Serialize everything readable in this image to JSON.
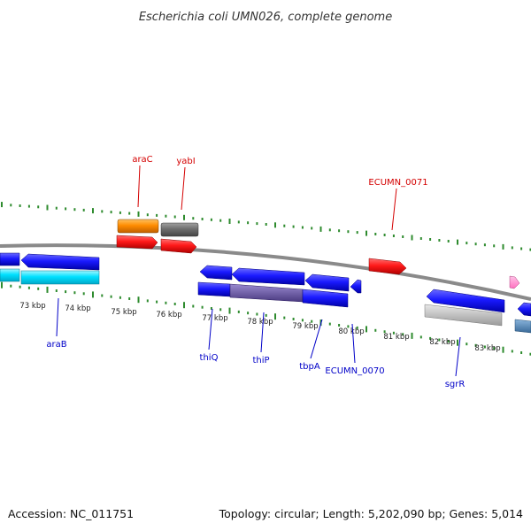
{
  "title": "Escherichia coli UMN026, complete genome",
  "footer": {
    "accession": "Accession: NC_011751",
    "summary": "Topology: circular; Length: 5,202,090 bp; Genes: 5,014"
  },
  "colors": {
    "backbone": "#8a8a8a",
    "tick": "#2e8b2e",
    "label_red": "#d40000",
    "label_blue": "#0000c8",
    "gene_blue": "#1a1aff",
    "gene_red": "#ff1a1a",
    "gene_orange": "#ff8c00",
    "gene_gray": "#6e6e6e",
    "gene_cyan": "#00e0ff",
    "gene_lightgray": "#c4c4c4",
    "gene_pink": "#ff8ccf",
    "gene_purple": "#6a5aa0",
    "gene_steel": "#4f86b8"
  },
  "kbp_labels": [
    "73 kbp",
    "74 kbp",
    "75 kbp",
    "76 kbp",
    "77 kbp",
    "78 kbp",
    "79 kbp",
    "80 kbp",
    "81 kbp",
    "82 kbp",
    "83 kbp"
  ],
  "labels": {
    "araC": "araC",
    "yabI": "yabI",
    "ECUMN_0071": "ECUMN_0071",
    "araB": "araB",
    "thiQ": "thiQ",
    "thiP": "thiP",
    "tbpA": "tbpA",
    "ECUMN_0070": "ECUMN_0070",
    "sgrR": "sgrR"
  }
}
